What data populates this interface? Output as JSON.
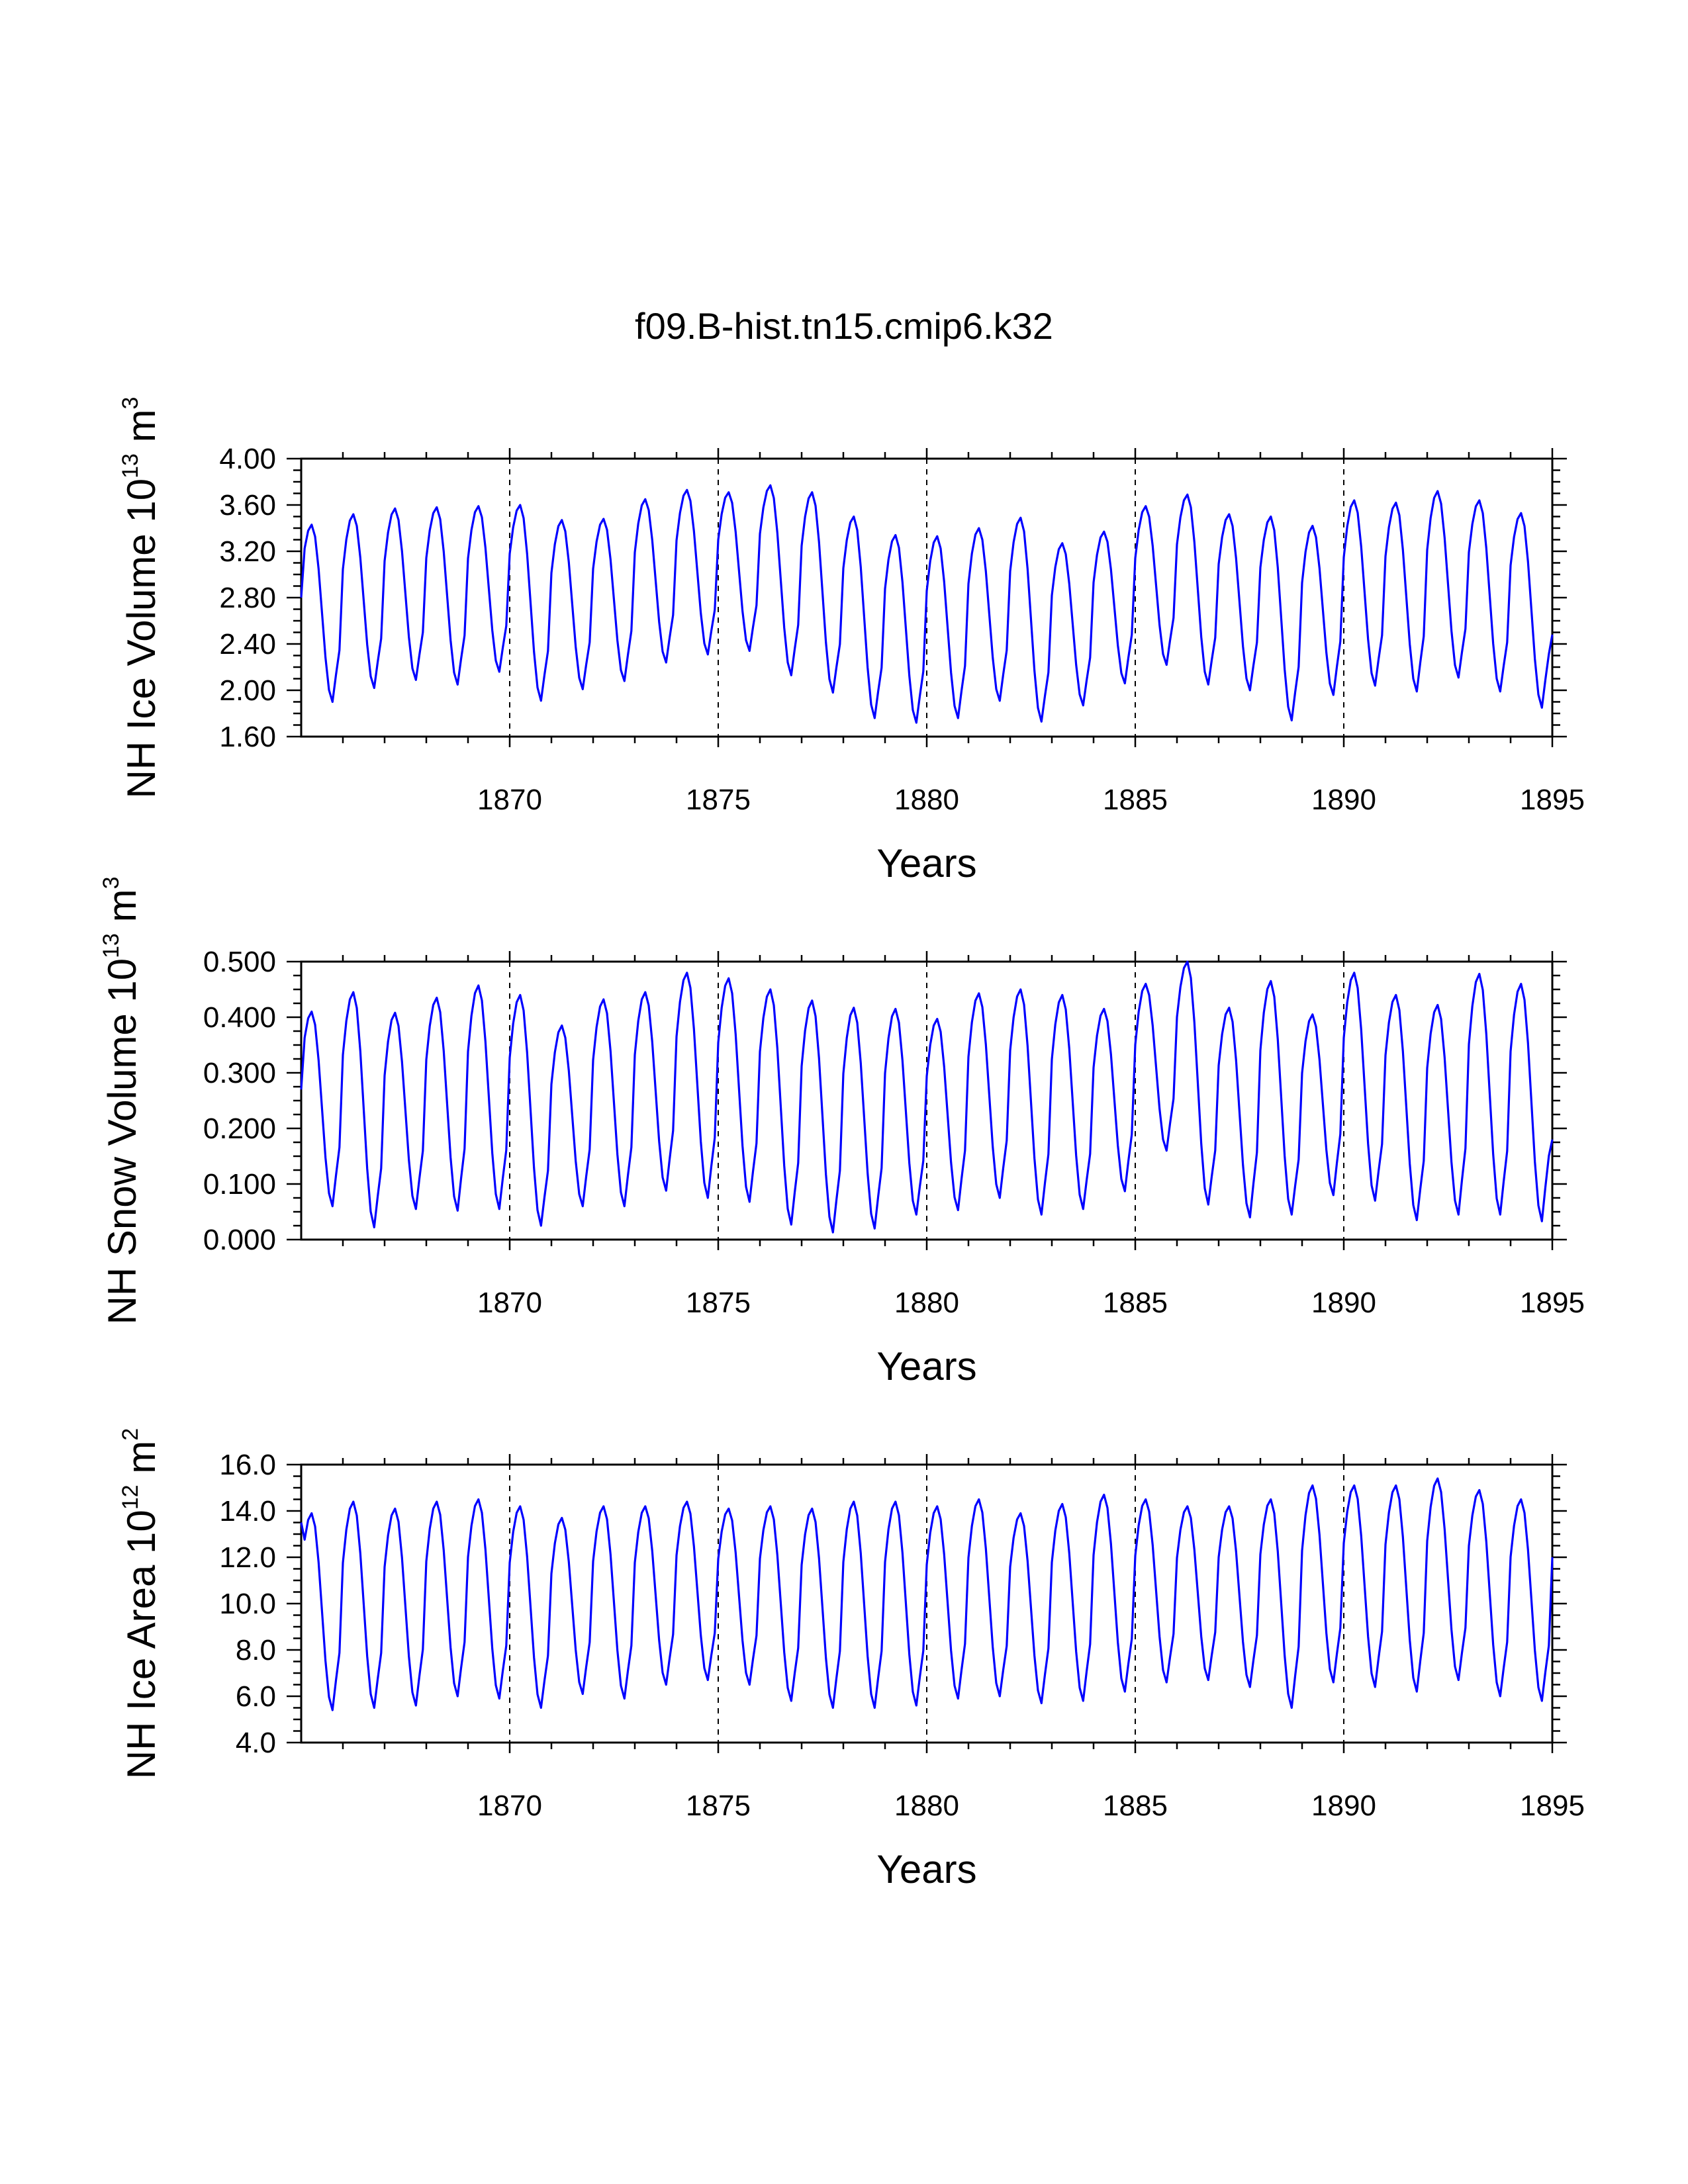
{
  "chart_data": {
    "title": "f09.B-hist.tn15.cmip6.k32",
    "xlim": [
      1865.0,
      1895.0
    ],
    "x_ticks": [
      1870,
      1875,
      1880,
      1885,
      1890,
      1895
    ],
    "x_tick_labels": [
      "1870",
      "1875",
      "1880",
      "1885",
      "1890",
      "1895"
    ],
    "xlabel": "Years",
    "grid": "dashed vertical lines at 1870, 1875, 1880, 1885, 1890",
    "line_color": "#0000ff",
    "panels": [
      {
        "type": "line",
        "ylabel": "NH Ice Volume 10",
        "ylabel_exponent": "13",
        "ylabel_unit": " m",
        "ylabel_unit_exponent": "3",
        "ylim": [
          1.6,
          4.0
        ],
        "y_ticks": [
          1.6,
          2.0,
          2.4,
          2.8,
          3.2,
          3.6,
          4.0
        ],
        "y_tick_labels": [
          "1.60",
          "2.00",
          "2.40",
          "2.80",
          "3.20",
          "3.60",
          "4.00"
        ],
        "series": [
          {
            "name": "NH Ice Volume",
            "start_year": 1865.0,
            "points_per_year": 12,
            "annual_max": [
              3.43,
              3.52,
              3.57,
              3.58,
              3.59,
              3.6,
              3.47,
              3.48,
              3.65,
              3.73,
              3.71,
              3.77,
              3.71,
              3.5,
              3.34,
              3.33,
              3.4,
              3.49,
              3.27,
              3.37,
              3.59,
              3.69,
              3.52,
              3.5,
              3.42,
              3.64,
              3.62,
              3.72,
              3.64,
              3.53
            ],
            "annual_min": [
              1.9,
              2.02,
              2.09,
              2.05,
              2.16,
              1.91,
              2.01,
              2.08,
              2.24,
              2.31,
              2.34,
              2.13,
              1.98,
              1.76,
              1.72,
              1.76,
              1.91,
              1.73,
              1.87,
              2.06,
              2.22,
              2.05,
              2.0,
              1.74,
              1.96,
              2.04,
              1.99,
              2.11,
              1.99,
              1.85
            ],
            "start_value": 2.8,
            "end_value": 2.48
          }
        ]
      },
      {
        "type": "line",
        "ylabel": "NH Snow Volume 10",
        "ylabel_exponent": "13",
        "ylabel_unit": " m",
        "ylabel_unit_exponent": "3",
        "ylim": [
          0.0,
          0.5
        ],
        "y_ticks": [
          0.0,
          0.1,
          0.2,
          0.3,
          0.4,
          0.5
        ],
        "y_tick_labels": [
          "0.000",
          "0.100",
          "0.200",
          "0.300",
          "0.400",
          "0.500"
        ],
        "series": [
          {
            "name": "NH Snow Volume",
            "start_year": 1865.0,
            "points_per_year": 12,
            "annual_max": [
              0.41,
              0.445,
              0.408,
              0.435,
              0.457,
              0.44,
              0.385,
              0.432,
              0.445,
              0.48,
              0.47,
              0.45,
              0.43,
              0.417,
              0.415,
              0.397,
              0.443,
              0.45,
              0.44,
              0.415,
              0.46,
              0.5,
              0.417,
              0.465,
              0.405,
              0.48,
              0.44,
              0.422,
              0.478,
              0.46
            ],
            "annual_min": [
              0.06,
              0.022,
              0.055,
              0.052,
              0.055,
              0.025,
              0.06,
              0.06,
              0.088,
              0.075,
              0.068,
              0.027,
              0.013,
              0.02,
              0.045,
              0.053,
              0.075,
              0.045,
              0.055,
              0.087,
              0.16,
              0.063,
              0.04,
              0.045,
              0.08,
              0.07,
              0.035,
              0.045,
              0.045,
              0.033
            ],
            "start_value": 0.27,
            "end_value": 0.18
          }
        ]
      },
      {
        "type": "line",
        "ylabel": "NH Ice Area 10",
        "ylabel_exponent": "12",
        "ylabel_unit": " m",
        "ylabel_unit_exponent": "2",
        "ylim": [
          4.0,
          16.0
        ],
        "y_ticks": [
          4.0,
          6.0,
          8.0,
          10.0,
          12.0,
          14.0,
          16.0
        ],
        "y_tick_labels": [
          "4.0",
          "6.0",
          "8.0",
          "10.0",
          "12.0",
          "14.0",
          "16.0"
        ],
        "series": [
          {
            "name": "NH Ice Area",
            "start_year": 1865.0,
            "points_per_year": 12,
            "annual_max": [
              13.9,
              14.4,
              14.1,
              14.4,
              14.5,
              14.2,
              13.7,
              14.2,
              14.2,
              14.4,
              14.1,
              14.2,
              14.1,
              14.4,
              14.4,
              14.2,
              14.5,
              13.9,
              14.3,
              14.7,
              14.5,
              14.2,
              14.2,
              14.5,
              15.1,
              15.1,
              15.1,
              15.4,
              14.9,
              14.5
            ],
            "annual_min": [
              5.4,
              5.5,
              5.6,
              6.0,
              5.9,
              5.5,
              6.1,
              5.9,
              6.5,
              6.7,
              6.5,
              5.8,
              5.5,
              5.5,
              5.6,
              5.9,
              6.0,
              5.7,
              5.8,
              6.2,
              6.6,
              6.7,
              6.4,
              5.5,
              6.6,
              6.4,
              6.2,
              6.7,
              6.0,
              5.8
            ],
            "start_value": 13.5,
            "end_value": 12.0
          }
        ]
      }
    ]
  }
}
